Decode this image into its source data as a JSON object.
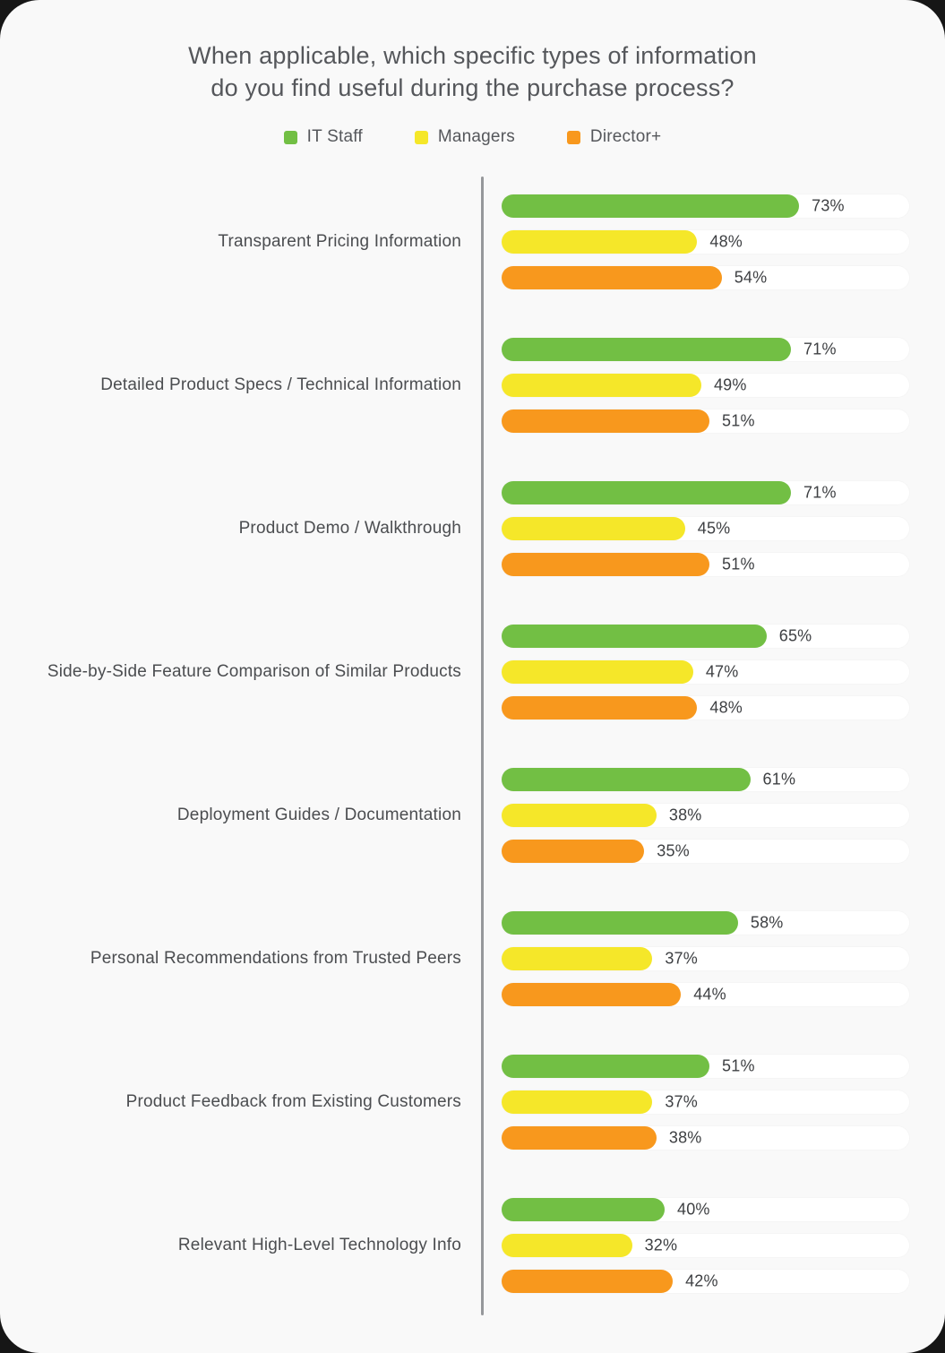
{
  "title": {
    "line1": "When applicable, which specific types of information",
    "line2": "do you find useful during the purchase process?"
  },
  "legend": [
    {
      "label": "IT Staff",
      "color": "#72bf44"
    },
    {
      "label": "Managers",
      "color": "#f5e729"
    },
    {
      "label": "Director+",
      "color": "#f8981d"
    }
  ],
  "chart_data": {
    "type": "bar",
    "orientation": "horizontal",
    "title": "When applicable, which specific types of information do you find useful during the purchase process?",
    "categories": [
      "Transparent Pricing Information",
      "Detailed Product Specs / Technical Information",
      "Product Demo / Walkthrough",
      "Side-by-Side Feature Comparison of Similar Products",
      "Deployment Guides / Documentation",
      "Personal Recommendations from Trusted Peers",
      "Product Feedback from Existing Customers",
      "Relevant High-Level Technology Info"
    ],
    "series": [
      {
        "name": "IT Staff",
        "color": "#72bf44",
        "values": [
          73,
          71,
          71,
          65,
          61,
          58,
          51,
          40
        ]
      },
      {
        "name": "Managers",
        "color": "#f5e729",
        "values": [
          48,
          49,
          45,
          47,
          38,
          37,
          37,
          32
        ]
      },
      {
        "name": "Director+",
        "color": "#f8981d",
        "values": [
          54,
          51,
          51,
          48,
          35,
          44,
          38,
          42
        ]
      }
    ],
    "value_suffix": "%",
    "xlim": [
      0,
      100
    ],
    "grid": false,
    "legend_position": "top"
  }
}
